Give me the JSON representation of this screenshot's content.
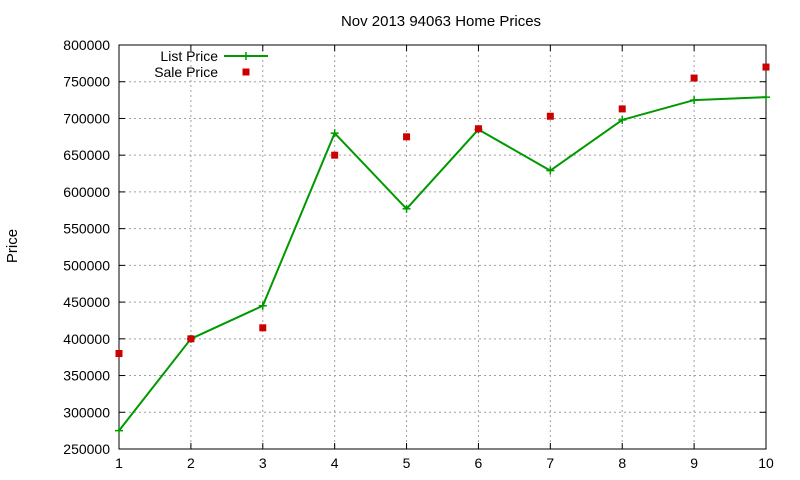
{
  "chart_data": {
    "type": "line",
    "title": "Nov 2013 94063 Home Prices",
    "xlabel": "",
    "ylabel": "Price",
    "x": [
      1,
      2,
      3,
      4,
      5,
      6,
      7,
      8,
      9,
      10
    ],
    "xlim": [
      1,
      10
    ],
    "ylim": [
      250000,
      800000
    ],
    "x_ticks": [
      1,
      2,
      3,
      4,
      5,
      6,
      7,
      8,
      9,
      10
    ],
    "y_ticks": [
      250000,
      300000,
      350000,
      400000,
      450000,
      500000,
      550000,
      600000,
      650000,
      700000,
      750000,
      800000
    ],
    "grid": true,
    "legend_position": "top-left",
    "series": [
      {
        "name": "List Price",
        "style": "line-with-plus-markers",
        "color": "#009900",
        "values": [
          275000,
          400000,
          445000,
          680000,
          577000,
          685000,
          629000,
          698000,
          725000,
          729000
        ]
      },
      {
        "name": "Sale Price",
        "style": "square-markers",
        "color": "#cc0000",
        "values": [
          380000,
          400000,
          415000,
          650000,
          675000,
          686000,
          703000,
          713000,
          755000,
          770000
        ]
      }
    ]
  }
}
